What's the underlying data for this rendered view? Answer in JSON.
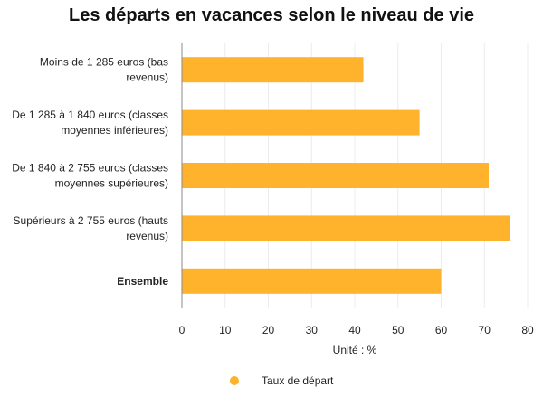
{
  "chart_data": {
    "type": "bar",
    "orientation": "horizontal",
    "title": "Les départs en vacances selon le niveau de vie",
    "categories": [
      [
        "Moins de 1 285 euros (bas",
        "revenus)"
      ],
      [
        "De 1 285 à 1 840 euros (classes",
        "moyennes inférieures)"
      ],
      [
        "De 1 840 à 2 755 euros (classes",
        "moyennes supérieures)"
      ],
      [
        "Supérieurs à 2 755 euros (hauts",
        "revenus)"
      ],
      [
        "Ensemble"
      ]
    ],
    "bold_categories": [
      4
    ],
    "series": [
      {
        "name": "Taux de départ",
        "values": [
          42,
          55,
          71,
          76,
          60
        ]
      }
    ],
    "xlabel": "Unité : %",
    "ylabel": "",
    "xlim": [
      0,
      80
    ],
    "xticks": [
      0,
      10,
      20,
      30,
      40,
      50,
      60,
      70,
      80
    ],
    "grid": "vertical",
    "legend": "bottom-center",
    "colors": {
      "bar": "#FFB22B",
      "grid": "#ececec",
      "axis": "#888888"
    }
  }
}
